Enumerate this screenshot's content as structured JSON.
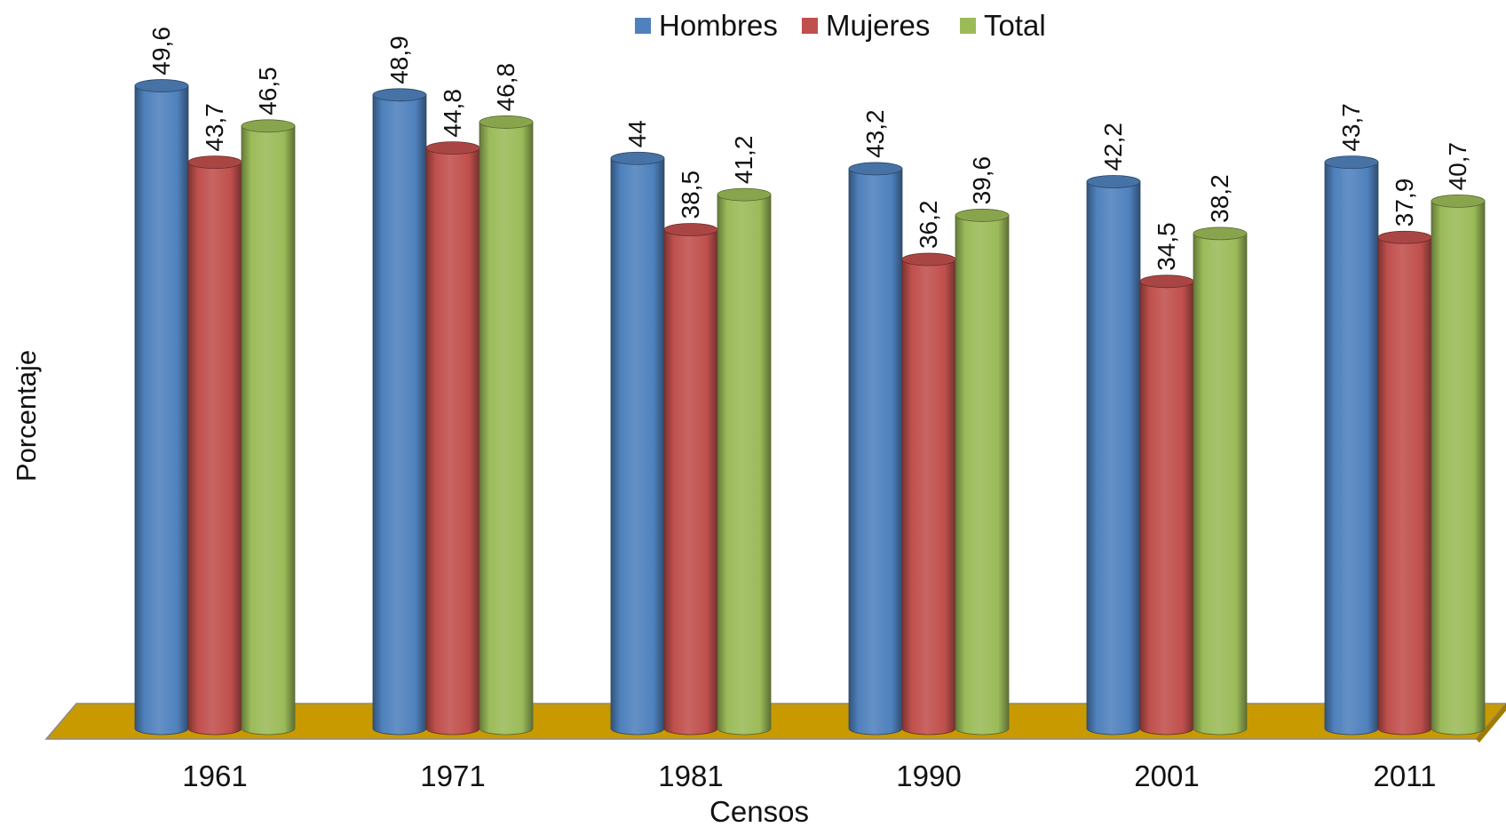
{
  "chart_data": {
    "type": "bar",
    "style": "3d-cylinder",
    "categories": [
      "1961",
      "1971",
      "1981",
      "1990",
      "2001",
      "2011"
    ],
    "series": [
      {
        "name": "Hombres",
        "color": "#4F81BD",
        "values": [
          49.6,
          48.9,
          44,
          43.2,
          42.2,
          43.7
        ],
        "labels": [
          "49,6",
          "48,9",
          "44",
          "43,2",
          "42,2",
          "43,7"
        ]
      },
      {
        "name": "Mujeres",
        "color": "#C0504D",
        "values": [
          43.7,
          44.8,
          38.5,
          36.2,
          34.5,
          37.9
        ],
        "labels": [
          "43,7",
          "44,8",
          "38,5",
          "36,2",
          "34,5",
          "37,9"
        ]
      },
      {
        "name": "Total",
        "color": "#9BBB59",
        "values": [
          46.5,
          46.8,
          41.2,
          39.6,
          38.2,
          40.7
        ],
        "labels": [
          "46,5",
          "46,8",
          "41,2",
          "39,6",
          "38,2",
          "40,7"
        ]
      }
    ],
    "xlabel": "Censos",
    "ylabel": "Porcentaje",
    "ylim": [
      0,
      50
    ],
    "floor_color": "#C99A00",
    "legend": "top-center",
    "grid": false
  }
}
